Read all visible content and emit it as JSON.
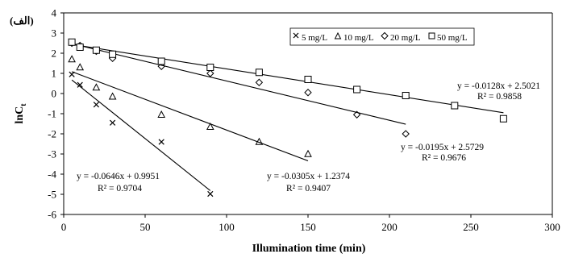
{
  "chart_data": {
    "type": "scatter",
    "corner_label": "(الف)",
    "xlabel": "Illumination time (min)",
    "ylabel": "lnC",
    "ylabel_sub": "t",
    "xlim": [
      0,
      300
    ],
    "ylim": [
      -6,
      4
    ],
    "xticks": [
      0,
      50,
      100,
      150,
      200,
      250,
      300
    ],
    "yticks": [
      -6,
      -5,
      -4,
      -3,
      -2,
      -1,
      0,
      1,
      2,
      3,
      4
    ],
    "grid": false,
    "legend_position": "top-right",
    "series": [
      {
        "name": "5 mg/L",
        "marker": "x-icon",
        "x": [
          5,
          10,
          20,
          30,
          60,
          90
        ],
        "y": [
          0.95,
          0.43,
          -0.55,
          -1.45,
          -2.4,
          -4.98
        ],
        "trend": {
          "slope": -0.0646,
          "intercept": 0.9951,
          "x_range": [
            5,
            90
          ]
        },
        "equation": "y = -0.0646x + 0.9951",
        "r2_label": "R² = 0.9704"
      },
      {
        "name": "10 mg/L",
        "marker": "triangle-icon",
        "x": [
          5,
          10,
          20,
          30,
          60,
          90,
          120,
          150
        ],
        "y": [
          1.7,
          1.3,
          0.3,
          -0.15,
          -1.05,
          -1.65,
          -2.4,
          -3.0
        ],
        "trend": {
          "slope": -0.0305,
          "intercept": 1.2374,
          "x_range": [
            5,
            150
          ]
        },
        "equation": "y = -0.0305x + 1.2374",
        "r2_label": "R² = 0.9407"
      },
      {
        "name": "20 mg/L",
        "marker": "diamond-icon",
        "x": [
          5,
          10,
          20,
          30,
          60,
          90,
          120,
          150,
          180,
          210
        ],
        "y": [
          2.5,
          2.38,
          2.1,
          1.75,
          1.35,
          1.0,
          0.55,
          0.05,
          -1.05,
          -2.0
        ],
        "trend": {
          "slope": -0.0195,
          "intercept": 2.5729,
          "x_range": [
            5,
            210
          ]
        },
        "equation": "y = -0.0195x + 2.5729",
        "r2_label": "R² = 0.9676"
      },
      {
        "name": "50 mg/L",
        "marker": "square-icon",
        "x": [
          5,
          10,
          20,
          30,
          60,
          90,
          120,
          150,
          180,
          210,
          240,
          270
        ],
        "y": [
          2.55,
          2.3,
          2.15,
          1.95,
          1.6,
          1.3,
          1.05,
          0.7,
          0.2,
          -0.1,
          -0.6,
          -1.25
        ],
        "trend": {
          "slope": -0.0128,
          "intercept": 2.5021,
          "x_range": [
            5,
            270
          ]
        },
        "equation": "y = -0.0128x + 2.5021",
        "r2_label": "R² = 0.9858"
      }
    ]
  }
}
